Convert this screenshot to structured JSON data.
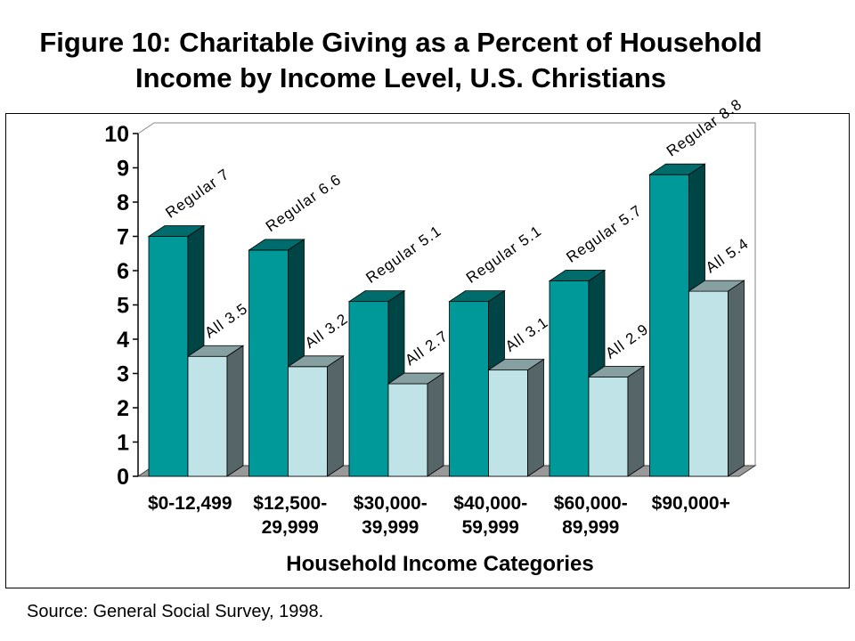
{
  "title_line1": "Figure 10: Charitable Giving as a Percent of Household",
  "title_line2": "Income by Income Level, U.S. Christians",
  "source": "Source: General Social Survey, 1998.",
  "chart_data": {
    "type": "bar",
    "categories": [
      [
        "$0-12,499"
      ],
      [
        "$12,500-",
        "29,999"
      ],
      [
        "$30,000-",
        "39,999"
      ],
      [
        "$40,000-",
        "59,999"
      ],
      [
        "$60,000-",
        "89,999"
      ],
      [
        "$90,000+"
      ]
    ],
    "series": [
      {
        "label_prefix": "Regular",
        "values": [
          7,
          6.6,
          5.1,
          5.1,
          5.7,
          8.8
        ],
        "color": "#009999"
      },
      {
        "label_prefix": "All",
        "values": [
          3.5,
          3.2,
          2.7,
          3.1,
          2.9,
          5.4
        ],
        "color": "#bfe3e6"
      }
    ],
    "xlabel": "Household Income Categories",
    "ylabel": "",
    "ylim": [
      0,
      10
    ],
    "yticks": [
      "0",
      "1",
      "2",
      "3",
      "4",
      "5",
      "6",
      "7",
      "8",
      "9",
      "10"
    ],
    "style": "3d-clustered"
  }
}
